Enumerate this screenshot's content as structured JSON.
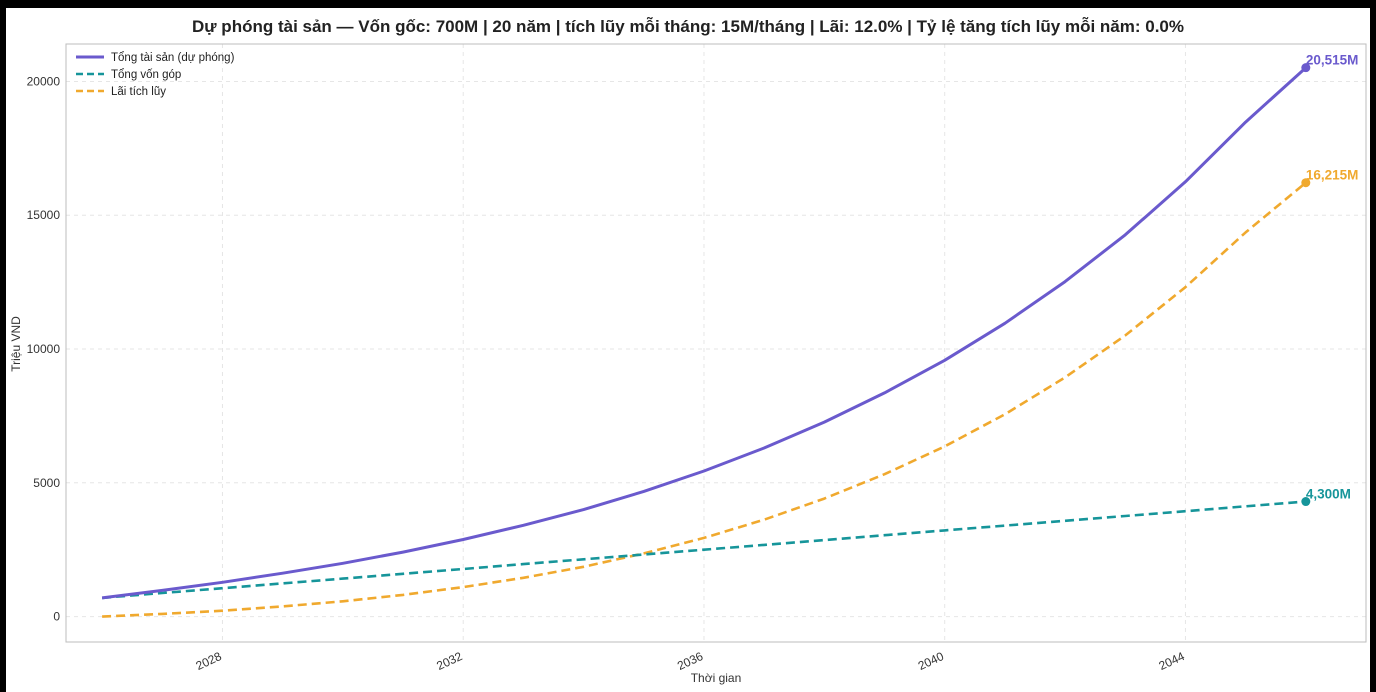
{
  "chart_data": {
    "type": "line",
    "title": "Dự phóng tài sản — Vốn gốc: 700M | 20 năm | tích lũy mỗi tháng: 15M/tháng | Lãi: 12.0% | Tỷ lệ tăng tích lũy mỗi năm: 0.0%",
    "xlabel": "Thời gian",
    "ylabel": "Triệu VND",
    "xlim": [
      2025.4,
      2047.0
    ],
    "ylim": [
      -950,
      21400
    ],
    "x_ticks": [
      2028,
      2032,
      2036,
      2040,
      2044
    ],
    "y_ticks": [
      0,
      5000,
      10000,
      15000,
      20000
    ],
    "grid": true,
    "legend_position": "top-left",
    "x": [
      2026,
      2027,
      2028,
      2029,
      2030,
      2031,
      2032,
      2033,
      2034,
      2035,
      2036,
      2037,
      2038,
      2039,
      2040,
      2041,
      2042,
      2043,
      2044,
      2045,
      2046
    ],
    "series": [
      {
        "name": "Tổng tài sản (dự phóng)",
        "color": "#6a5acd",
        "style": "solid",
        "end_label": "20,515M",
        "values": [
          700,
          980,
          1280,
          1620,
          1990,
          2410,
          2880,
          3410,
          4000,
          4680,
          5440,
          6300,
          7270,
          8360,
          9580,
          10960,
          12520,
          14270,
          16250,
          18480,
          20515
        ]
      },
      {
        "name": "Tổng vốn góp",
        "color": "#16959a",
        "style": "dashed",
        "end_label": "4,300M",
        "values": [
          700,
          880,
          1060,
          1240,
          1420,
          1600,
          1780,
          1960,
          2140,
          2320,
          2500,
          2680,
          2860,
          3040,
          3220,
          3400,
          3580,
          3760,
          3940,
          4120,
          4300
        ]
      },
      {
        "name": "Lãi tích lũy",
        "color": "#f0a92e",
        "style": "dashed",
        "end_label": "16,215M",
        "values": [
          0,
          100,
          220,
          380,
          570,
          810,
          1100,
          1450,
          1860,
          2360,
          2940,
          3620,
          4410,
          5320,
          6360,
          7560,
          8940,
          10510,
          12310,
          14360,
          16215
        ]
      }
    ]
  }
}
